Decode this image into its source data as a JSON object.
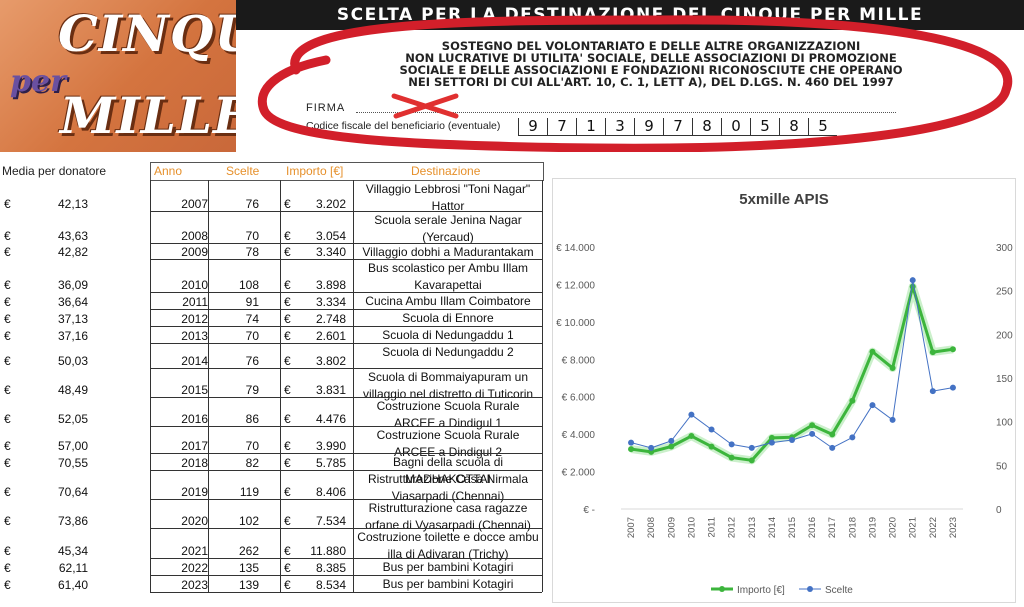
{
  "banner": {
    "logo_top": "CINQUE",
    "logo_mid": "per",
    "logo_bottom": "MILLE",
    "header": "SCELTA PER LA DESTINAZIONE DEL CINQUE PER MILLE",
    "sub_lines": [
      "SOSTEGNO DEL VOLONTARIATO E DELLE ALTRE ORGANIZZAZIONI",
      "NON LUCRATIVE DI UTILITA' SOCIALE, DELLE ASSOCIAZIONI DI PROMOZIONE",
      "SOCIALE E DELLE ASSOCIAZIONI E FONDAZIONI RICONOSCIUTE CHE OPERANO",
      "NEI SETTORI DI CUI ALL'ART. 10, C. 1, LETT A), DEL D.LGS. N. 460 DEL 1997"
    ],
    "firma_label": "FIRMA",
    "cf_label": "Codice fiscale del beneficiario (eventuale)",
    "cf_digits": [
      "9",
      "7",
      "1",
      "3",
      "9",
      "7",
      "8",
      "0",
      "5",
      "8",
      "5"
    ]
  },
  "table": {
    "media_label": "Media per donatore",
    "headers": {
      "anno": "Anno",
      "scelte": "Scelte",
      "importo": "Importo [€]",
      "destinazione": "Destinazione"
    },
    "currency": "€",
    "rows": [
      {
        "avg": "42,13",
        "year": "2007",
        "scelte": "76",
        "importo": "3.202",
        "dest": "Villaggio Lebbrosi \"Toni Nagar\" Hattor"
      },
      {
        "avg": "43,63",
        "year": "2008",
        "scelte": "70",
        "importo": "3.054",
        "dest": "Scuola serale Jenina Nagar (Yercaud)"
      },
      {
        "avg": "42,82",
        "year": "2009",
        "scelte": "78",
        "importo": "3.340",
        "dest": "Villaggio dobhi a Madurantakam"
      },
      {
        "avg": "36,09",
        "year": "2010",
        "scelte": "108",
        "importo": "3.898",
        "dest": "Bus scolastico per Ambu Illam Kavarapettai"
      },
      {
        "avg": "36,64",
        "year": "2011",
        "scelte": "91",
        "importo": "3.334",
        "dest": "Cucina Ambu Illam Coimbatore"
      },
      {
        "avg": "37,13",
        "year": "2012",
        "scelte": "74",
        "importo": "2.748",
        "dest": "Scuola di Ennore"
      },
      {
        "avg": "37,16",
        "year": "2013",
        "scelte": "70",
        "importo": "2.601",
        "dest": "Scuola di Nedungaddu 1"
      },
      {
        "avg": "50,03",
        "year": "2014",
        "scelte": "76",
        "importo": "3.802",
        "dest": "Scuola di Nedungaddu 2"
      },
      {
        "avg": "48,49",
        "year": "2015",
        "scelte": "79",
        "importo": "3.831",
        "dest": "Scuola di Bommaiyapuram un villaggio nel distretto di Tuticorin"
      },
      {
        "avg": "52,05",
        "year": "2016",
        "scelte": "86",
        "importo": "4.476",
        "dest": "Costruzione Scuola Rurale ARCEE a Dindigul 1"
      },
      {
        "avg": "57,00",
        "year": "2017",
        "scelte": "70",
        "importo": "3.990",
        "dest": "Costruzione Scuola Rurale ARCEE a Dindigul 2"
      },
      {
        "avg": "70,55",
        "year": "2018",
        "scelte": "82",
        "importo": "5.785",
        "dest": "Bagni della scuola di MADHAKOTTAI"
      },
      {
        "avg": "70,64",
        "year": "2019",
        "scelte": "119",
        "importo": "8.406",
        "dest": "Ristrutturazione Casa Nirmala Viasarpadi (Chennai)"
      },
      {
        "avg": "73,86",
        "year": "2020",
        "scelte": "102",
        "importo": "7.534",
        "dest": "Ristrutturazione casa ragazze orfane di Vyasarpadi (Chennai)"
      },
      {
        "avg": "45,34",
        "year": "2021",
        "scelte": "262",
        "importo": "11.880",
        "dest": "Costruzione toilette e docce ambu illa di Adivaran (Trichy)"
      },
      {
        "avg": "62,11",
        "year": "2022",
        "scelte": "135",
        "importo": "8.385",
        "dest": "Bus per bambini Kotagiri"
      },
      {
        "avg": "61,40",
        "year": "2023",
        "scelte": "139",
        "importo": "8.534",
        "dest": "Bus per bambini Kotagiri"
      }
    ]
  },
  "chart_data": {
    "type": "line",
    "title": "5xmille APIS",
    "x": [
      "2007",
      "2008",
      "2009",
      "2010",
      "2011",
      "2012",
      "2013",
      "2014",
      "2015",
      "2016",
      "2017",
      "2018",
      "2019",
      "2020",
      "2021",
      "2022",
      "2023"
    ],
    "series": [
      {
        "name": "Importo [€]",
        "axis": "left",
        "color": "#3cb53c",
        "values": [
          3202,
          3054,
          3340,
          3898,
          3334,
          2748,
          2601,
          3802,
          3831,
          4476,
          3990,
          5785,
          8406,
          7534,
          11880,
          8385,
          8534
        ]
      },
      {
        "name": "Scelte",
        "axis": "right",
        "color": "#4472c4",
        "values": [
          76,
          70,
          78,
          108,
          91,
          74,
          70,
          76,
          79,
          86,
          70,
          82,
          119,
          102,
          262,
          135,
          139
        ]
      }
    ],
    "left_axis": {
      "ticks": [
        "€ -",
        "€ 2.000",
        "€ 4.000",
        "€ 6.000",
        "€ 8.000",
        "€ 10.000",
        "€ 12.000",
        "€ 14.000"
      ],
      "range": [
        0,
        14000
      ]
    },
    "right_axis": {
      "ticks": [
        "0",
        "50",
        "100",
        "150",
        "200",
        "250",
        "300"
      ],
      "range": [
        0,
        300
      ]
    },
    "grid": false,
    "legend": "bottom"
  }
}
